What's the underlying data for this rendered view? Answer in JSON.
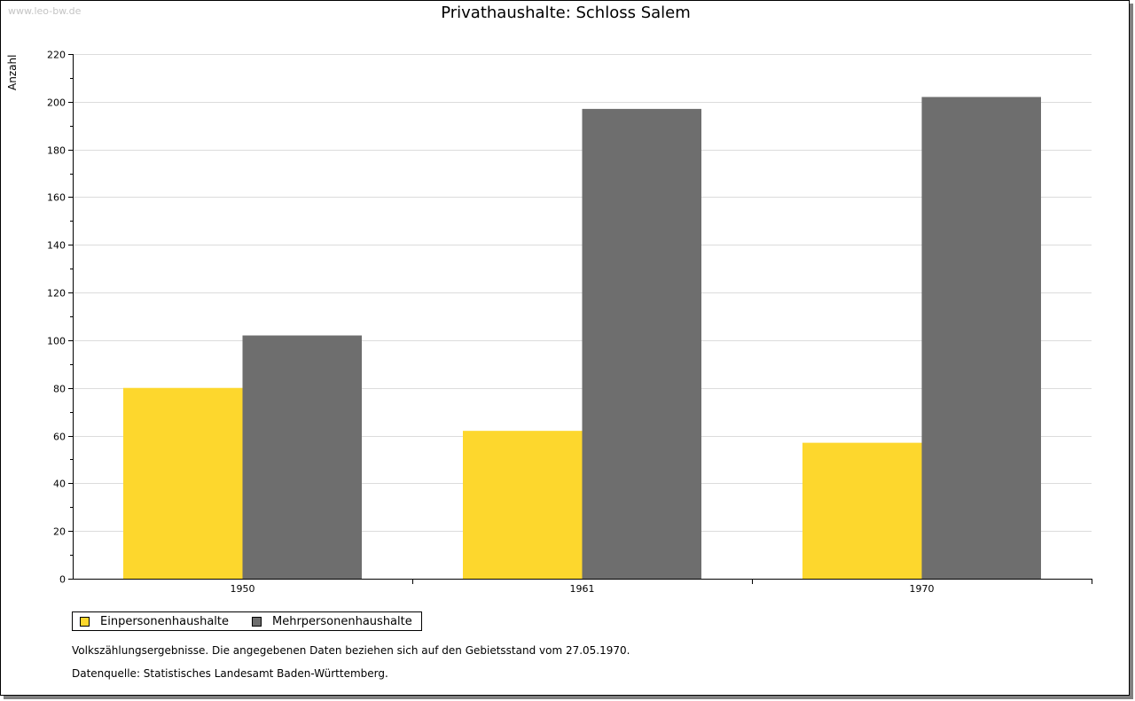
{
  "watermark": "www.leo-bw.de",
  "chart_data": {
    "type": "bar",
    "title": "Privathaushalte: Schloss Salem",
    "xlabel": "",
    "ylabel": "Anzahl",
    "categories": [
      "1950",
      "1961",
      "1970"
    ],
    "series": [
      {
        "name": "Einpersonenhaushalte",
        "color": "#fdd72d",
        "values": [
          80,
          62,
          57
        ]
      },
      {
        "name": "Mehrpersonenhaushalte",
        "color": "#6e6e6e",
        "values": [
          102,
          197,
          202
        ]
      }
    ],
    "ylim": [
      0,
      220
    ],
    "yticks": [
      0,
      20,
      40,
      60,
      80,
      100,
      120,
      140,
      160,
      180,
      200,
      220
    ],
    "grid": true,
    "legend": "bottom-left"
  },
  "notes": {
    "line1": "Volkszählungsergebnisse. Die angegebenen Daten beziehen sich auf den Gebietsstand vom 27.05.1970.",
    "line2": "Datenquelle: Statistisches Landesamt Baden-Württemberg."
  },
  "colors": {
    "grid": "#dcdcdc",
    "axis": "#000000"
  }
}
